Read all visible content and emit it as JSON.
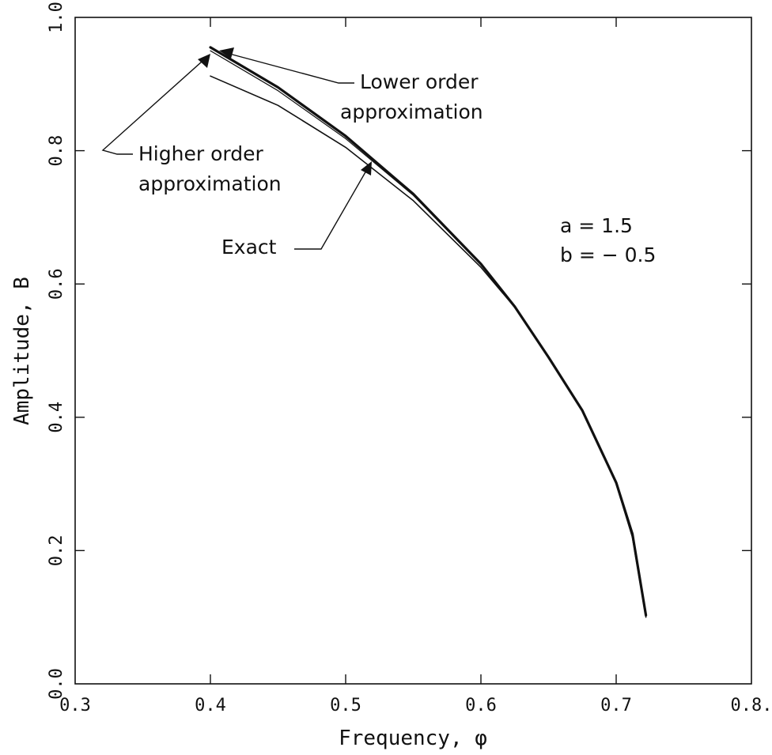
{
  "chart_data": {
    "type": "line",
    "title": "",
    "xlabel": "Frequency, φ",
    "ylabel": "Amplitude, B",
    "xlim": [
      0.3,
      0.8
    ],
    "ylim": [
      0.0,
      1.0
    ],
    "x_ticks": [
      "0.3",
      "0.4",
      "0.5",
      "0.6",
      "0.7",
      "0.8."
    ],
    "y_ticks": [
      "0.0",
      "0.2",
      "0.4",
      "0.6",
      "0.8",
      "1.0"
    ],
    "grid": false,
    "series": [
      {
        "name": "Exact",
        "x": [
          0.4,
          0.45,
          0.5,
          0.55,
          0.6,
          0.625,
          0.65,
          0.675,
          0.7,
          0.712,
          0.722
        ],
        "y": [
          0.912,
          0.868,
          0.805,
          0.725,
          0.625,
          0.565,
          0.49,
          0.41,
          0.3,
          0.22,
          0.1
        ]
      },
      {
        "name": "Higher order approximation",
        "x": [
          0.4,
          0.45,
          0.5,
          0.55,
          0.6,
          0.625,
          0.65,
          0.675,
          0.7,
          0.712,
          0.722
        ],
        "y": [
          0.955,
          0.895,
          0.822,
          0.735,
          0.63,
          0.566,
          0.49,
          0.41,
          0.302,
          0.225,
          0.103
        ]
      },
      {
        "name": "Lower order approximation",
        "x": [
          0.4,
          0.45,
          0.5,
          0.55,
          0.6,
          0.625,
          0.65,
          0.675,
          0.7,
          0.712,
          0.722
        ],
        "y": [
          0.95,
          0.89,
          0.818,
          0.733,
          0.629,
          0.566,
          0.49,
          0.41,
          0.302,
          0.225,
          0.103
        ]
      }
    ],
    "annotations": {
      "lower_order": [
        "Lower order",
        "approximation"
      ],
      "higher_order": [
        "Higher order",
        "approximation"
      ],
      "exact": "Exact",
      "param_a": "a = 1.5",
      "param_b": "b = − 0.5"
    }
  }
}
